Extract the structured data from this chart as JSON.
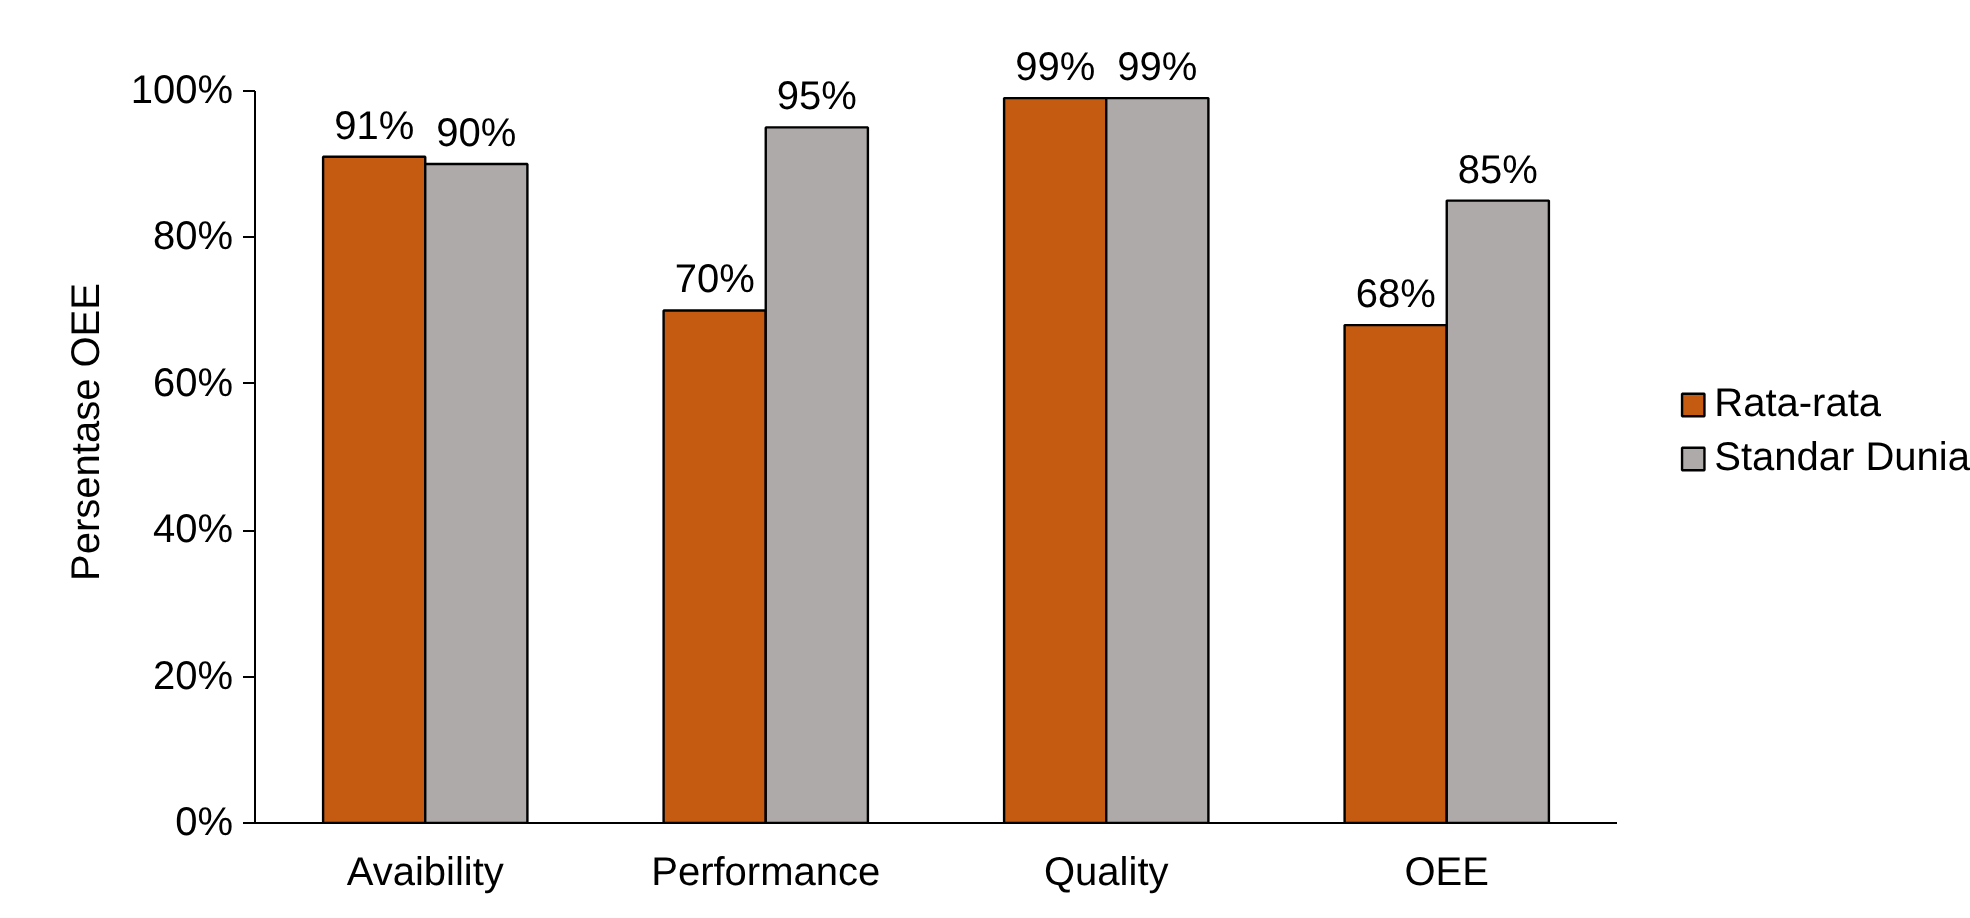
{
  "chart_data": {
    "type": "bar",
    "ylabel": "Persentase OEE",
    "categories": [
      "Avaibility",
      "Performance",
      "Quality",
      "OEE"
    ],
    "series": [
      {
        "name": "Rata-rata",
        "color": "#c55a11",
        "values": [
          91,
          70,
          99,
          68
        ],
        "value_labels": [
          "91%",
          "70%",
          "99%",
          "68%"
        ]
      },
      {
        "name": "Standar Dunia",
        "color": "#aeaaaa",
        "values": [
          90,
          95,
          99,
          85
        ],
        "value_labels": [
          "90%",
          "95%",
          "99%",
          "85%"
        ]
      }
    ],
    "ylim": [
      0,
      100
    ],
    "yticks": [
      {
        "value": 0,
        "label": "0%"
      },
      {
        "value": 20,
        "label": "20%"
      },
      {
        "value": 40,
        "label": "40%"
      },
      {
        "value": 60,
        "label": "60%"
      },
      {
        "value": 80,
        "label": "80%"
      },
      {
        "value": 100,
        "label": "100%"
      }
    ],
    "grid": false,
    "legend": "right"
  }
}
